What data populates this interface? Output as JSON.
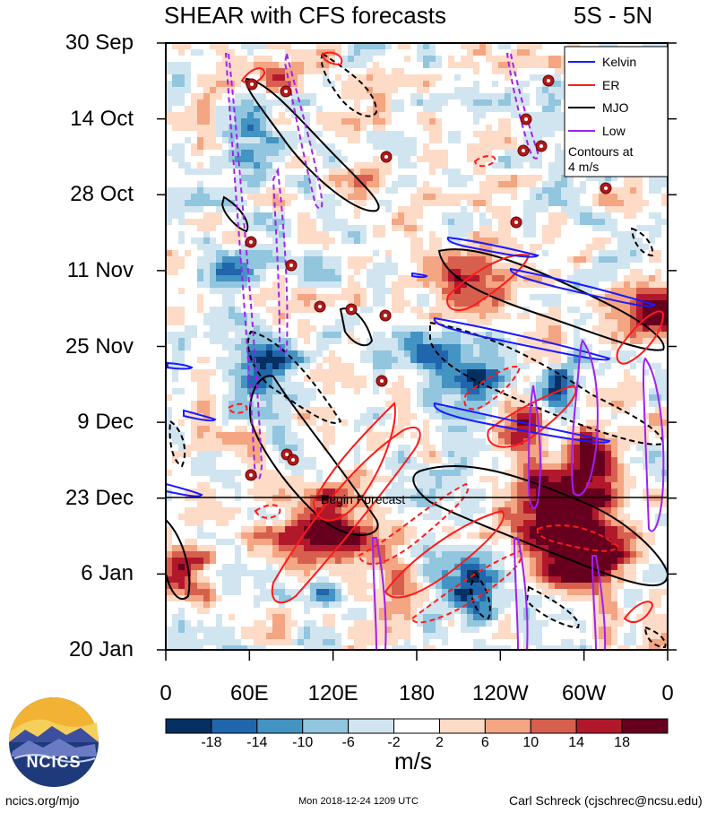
{
  "header": {
    "title_left": "SHEAR with CFS forecasts",
    "title_right": "5S - 5N"
  },
  "chart_data": {
    "type": "heatmap",
    "title": "SHEAR with CFS forecasts",
    "region": "5S - 5N",
    "y_tick_labels": [
      "30 Sep",
      "14 Oct",
      "28 Oct",
      "11 Nov",
      "25 Nov",
      "9 Dec",
      "23 Dec",
      "6 Jan",
      "20 Jan"
    ],
    "x_tick_labels": [
      "0",
      "60E",
      "120E",
      "180",
      "120W",
      "60W",
      "0"
    ],
    "x_range_deg_east": [
      0,
      360
    ],
    "forecast_marker": {
      "label": "Begin Forecast",
      "date": "23 Dec"
    },
    "legend": {
      "items": [
        {
          "name": "Kelvin",
          "color": "#1a1aff"
        },
        {
          "name": "ER",
          "color": "#ff1a1a"
        },
        {
          "name": "MJO",
          "color": "#000000"
        },
        {
          "name": "Low",
          "color": "#a020f0"
        }
      ],
      "note": "Contours at\n4 m/s"
    },
    "colorbar": {
      "units": "m/s",
      "tick_labels": [
        "-18",
        "-14",
        "-10",
        "-6",
        "-2",
        "2",
        "6",
        "10",
        "14",
        "18"
      ],
      "colors": [
        "#053061",
        "#2166ac",
        "#4393c3",
        "#92c5de",
        "#d1e5f0",
        "#ffffff",
        "#fddbc7",
        "#f4a582",
        "#d6604d",
        "#b2182b",
        "#67001f"
      ]
    }
  },
  "logo": {
    "text": "NCICS"
  },
  "footer": {
    "left": "ncics.org/mjo",
    "center": "Mon 2018-12-24 1209 UTC",
    "right": "Carl Schreck (cjschrec@ncsu.edu)"
  }
}
